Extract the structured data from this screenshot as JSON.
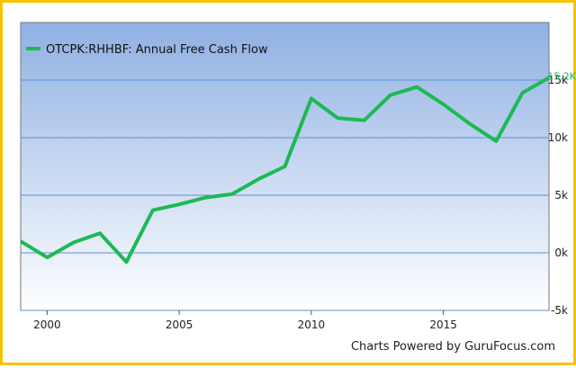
{
  "chart_data": {
    "type": "line",
    "legend": {
      "label": "OTCPK:RHHBF: Annual Free Cash Flow",
      "placement": "top-left"
    },
    "series": [
      {
        "name": "OTCPK:RHHBF: Annual Free Cash Flow",
        "color": "#1db954",
        "x": [
          1999,
          2000,
          2001,
          2002,
          2003,
          2004,
          2005,
          2006,
          2007,
          2008,
          2009,
          2010,
          2011,
          2012,
          2013,
          2014,
          2015,
          2016,
          2017,
          2018,
          2019
        ],
        "values": [
          1000,
          -400,
          900,
          1700,
          -800,
          3700,
          4200,
          4800,
          5100,
          6400,
          7500,
          13400,
          11700,
          11500,
          13700,
          14400,
          12900,
          11200,
          9700,
          13900,
          15200
        ]
      }
    ],
    "last_value_label": "15.2K",
    "x_ticks": [
      "2000",
      "2005",
      "2010",
      "2015"
    ],
    "y_ticks": [
      "-5k",
      "0k",
      "5k",
      "10k",
      "15k"
    ],
    "y_tick_values": [
      -5000,
      0,
      5000,
      10000,
      15000
    ],
    "x_tick_values": [
      2000,
      2005,
      2010,
      2015
    ],
    "xlim": [
      1999,
      2019
    ],
    "ylim": [
      -5000,
      20000
    ],
    "grid": true,
    "background_gradient": [
      "#8fb0e3",
      "#ffffff"
    ]
  },
  "credit": "Charts Powered by GuruFocus.com"
}
